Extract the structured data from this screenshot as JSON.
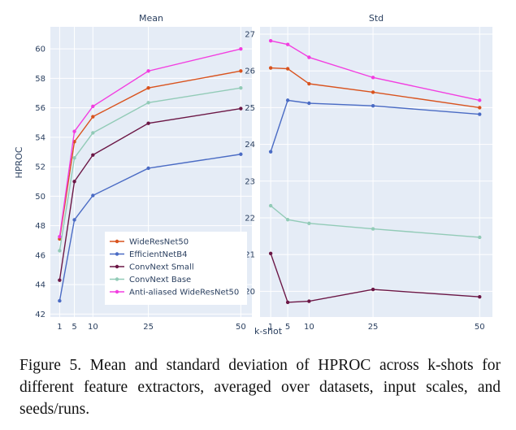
{
  "colors": {
    "plot_bg": "#e5ecf6",
    "grid": "#ffffff",
    "text": "#2a3f5f",
    "series": [
      "#d9531e",
      "#4a6bc4",
      "#6b1645",
      "#92cbb7",
      "#f23ee0"
    ]
  },
  "chart_data": [
    {
      "type": "line",
      "title": "Mean",
      "xlabel": "k-shot",
      "ylabel": "HPROC",
      "x": [
        1,
        5,
        10,
        25,
        50
      ],
      "xticks": [
        1,
        5,
        10,
        25,
        50
      ],
      "xlim": [
        -1.5,
        53
      ],
      "ylim": [
        41.8,
        61.5
      ],
      "yticks": [
        42,
        44,
        46,
        48,
        50,
        52,
        54,
        56,
        58,
        60
      ],
      "grid": true,
      "legend_position": "bottom-right",
      "series": [
        {
          "name": "WideResNet50",
          "values": [
            47.1,
            53.7,
            55.4,
            57.35,
            58.5
          ]
        },
        {
          "name": "EfficientNetB4",
          "values": [
            42.9,
            48.4,
            50.05,
            51.9,
            52.85
          ]
        },
        {
          "name": "ConvNext Small",
          "values": [
            44.3,
            51.0,
            52.8,
            54.95,
            55.95
          ]
        },
        {
          "name": "ConvNext Base",
          "values": [
            46.3,
            52.6,
            54.3,
            56.35,
            57.35
          ]
        },
        {
          "name": "Anti-aliased WideResNet50",
          "values": [
            47.25,
            54.4,
            56.1,
            58.5,
            60.0
          ]
        }
      ]
    },
    {
      "type": "line",
      "title": "Std",
      "xlabel": "k-shot",
      "ylabel": "",
      "x": [
        1,
        5,
        10,
        25,
        50
      ],
      "xticks": [
        1,
        5,
        10,
        25,
        50
      ],
      "xlim": [
        -1.5,
        53
      ],
      "ylim": [
        19.3,
        27.2
      ],
      "yticks": [
        20,
        21,
        22,
        23,
        24,
        25,
        26,
        27
      ],
      "grid": true,
      "series": [
        {
          "name": "WideResNet50",
          "values": [
            26.08,
            26.06,
            25.65,
            25.42,
            25.0
          ]
        },
        {
          "name": "EfficientNetB4",
          "values": [
            23.8,
            25.2,
            25.12,
            25.05,
            24.82
          ]
        },
        {
          "name": "ConvNext Small",
          "values": [
            21.03,
            19.7,
            19.73,
            20.05,
            19.85
          ]
        },
        {
          "name": "ConvNext Base",
          "values": [
            22.33,
            21.95,
            21.85,
            21.7,
            21.47
          ]
        },
        {
          "name": "Anti-aliased WideResNet50",
          "values": [
            26.82,
            26.72,
            26.37,
            25.82,
            25.2
          ]
        }
      ]
    }
  ],
  "caption": "Figure 5.  Mean and standard deviation of HPROC across k-shots for different feature extractors, averaged over datasets, input scales, and seeds/runs."
}
